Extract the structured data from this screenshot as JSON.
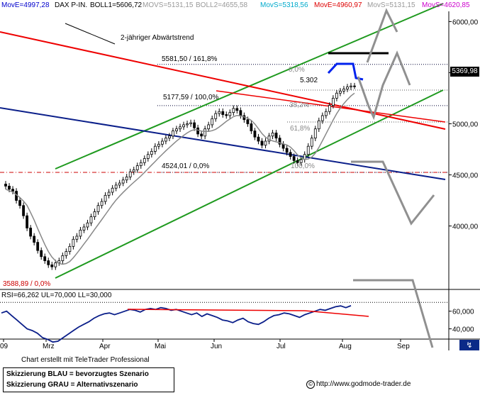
{
  "header": {
    "items": [
      {
        "label": "MovE=4997,28",
        "color": "#0000cc"
      },
      {
        "label": "DAX P-IN.",
        "color": "#000000"
      },
      {
        "label": "BOLL1=5606,72",
        "color": "#000000"
      },
      {
        "label": "MOVS=5131,15",
        "color": "#999999"
      },
      {
        "label": "BOLL2=4655,58",
        "color": "#999999"
      },
      {
        "label": "MovS=5318,56",
        "color": "#00aacc"
      },
      {
        "label": "MovE=4960,97",
        "color": "#dd0000"
      },
      {
        "label": "MovS=5131,15",
        "color": "#999999"
      },
      {
        "label": "MovS=4620,85",
        "color": "#cc00cc"
      }
    ]
  },
  "rsi_header": "RSI=66,262 UL=70,000 LL=30,000",
  "credit": "Chart erstellt mit TeleTrader Professional",
  "legend": {
    "line1": "Skizzierung BLAU = bevorzugtes Szenario",
    "line2": "Skizzierung GRAU = Alternativszenario"
  },
  "website": "http://www.godmode-trader.de",
  "copyright_symbol": "©",
  "last_price": "5369,98",
  "corner_icon": "chart-toggle-icon",
  "colors": {
    "green_channel": "#1f9a1f",
    "red_trend": "#ee0000",
    "navy_trend": "#0b1f8a",
    "blue_scenario": "#0022ee",
    "gray_scenario": "#909090",
    "candles": "#000000"
  },
  "chart_data": {
    "type": "candlestick",
    "title": "DAX P-IN.",
    "x_tick_labels": [
      "09",
      "Mrz",
      "Apr",
      "Mai",
      "Jun",
      "Jul",
      "Aug",
      "Sep"
    ],
    "y_tick_labels": [
      "6000,00",
      "5500,00",
      "5000,00",
      "4500,00",
      "4000,00"
    ],
    "y_ticks": [
      6000,
      5500,
      5000,
      4500,
      4000
    ],
    "ylim": [
      3400,
      6100
    ],
    "annotations": [
      {
        "text": "2-jähriger Abwärtstrend"
      },
      {
        "text": "5581,50 / 161,8%",
        "value": 5581.5
      },
      {
        "text": "5177,59 / 100,0%",
        "value": 5177.59
      },
      {
        "text": "4524,01 / 0,0%",
        "value": 4524.01
      },
      {
        "text": "3588,89 / 0,0%",
        "value": 3588.89
      },
      {
        "text": "0,0%"
      },
      {
        "text": "38,2%"
      },
      {
        "text": "61,8%"
      },
      {
        "text": "100,0%"
      },
      {
        "text": "5.302"
      }
    ],
    "closes": [
      4390,
      4360,
      4340,
      4250,
      4200,
      4100,
      3980,
      3900,
      3840,
      3760,
      3700,
      3660,
      3620,
      3600,
      3640,
      3660,
      3710,
      3750,
      3800,
      3870,
      3900,
      3960,
      3990,
      4030,
      4090,
      4140,
      4200,
      4240,
      4300,
      4330,
      4370,
      4400,
      4420,
      4450,
      4480,
      4530,
      4550,
      4590,
      4620,
      4660,
      4700,
      4730,
      4780,
      4800,
      4830,
      4860,
      4880,
      4930,
      4950,
      4970,
      4990,
      5000,
      5010,
      4960,
      4900,
      4880,
      4950,
      4990,
      5050,
      5100,
      5120,
      5090,
      5080,
      5110,
      5150,
      5130,
      5080,
      5040,
      5000,
      4930,
      4870,
      4830,
      4790,
      4830,
      4880,
      4910,
      4860,
      4800,
      4760,
      4720,
      4680,
      4640,
      4620,
      4650,
      4700,
      4780,
      4860,
      4950,
      5030,
      5080,
      5120,
      5180,
      5250,
      5300,
      5320,
      5340,
      5360,
      5370,
      5369.98
    ],
    "rsi": [
      58,
      60,
      55,
      50,
      45,
      40,
      38,
      35,
      30,
      28,
      25,
      26,
      30,
      34,
      38,
      42,
      45,
      48,
      52,
      55,
      57,
      58,
      56,
      58,
      60,
      62,
      61,
      59,
      62,
      63,
      62,
      64,
      63,
      61,
      62,
      60,
      58,
      56,
      58,
      54,
      57,
      55,
      53,
      50,
      49,
      47,
      50,
      52,
      48,
      46,
      45,
      48,
      52,
      55,
      56,
      58,
      57,
      55,
      53,
      56,
      58,
      60,
      62,
      61,
      63,
      65,
      66,
      64,
      66.262
    ],
    "rsi_ylim": [
      30,
      75
    ],
    "rsi_y_tick_labels": [
      "60,000",
      "40,000"
    ],
    "rsi_y_ticks": [
      60,
      40
    ]
  }
}
